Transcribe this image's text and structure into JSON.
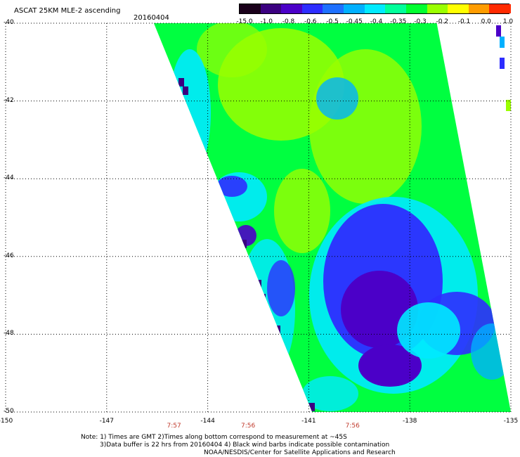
{
  "header": {
    "title": "ASCAT 25KM MLE-2 ascending",
    "date": "20160404"
  },
  "colorbar": {
    "labels": [
      "-15.0",
      "-1.0",
      "-0.8",
      "-0.6",
      "-0.5",
      "-0.45",
      "-0.4",
      "-0.35",
      "-0.3",
      "-0.2",
      "-0.1",
      "0.0",
      "1.0"
    ],
    "colors": [
      "#1a001a",
      "#3b0080",
      "#4b00c8",
      "#2d2dff",
      "#1e70ff",
      "#00b0ff",
      "#00eaff",
      "#00ff9a",
      "#00ff30",
      "#9aff00",
      "#ffff00",
      "#ff9c00",
      "#ff2a00"
    ]
  },
  "chart_data": {
    "type": "heatmap",
    "title": "ASCAT 25KM MLE-2 ascending",
    "x_ticks": [
      "-150",
      "-147",
      "-144",
      "-141",
      "-138",
      "-135"
    ],
    "y_ticks": [
      "-40",
      "-42",
      "-44",
      "-46",
      "-48",
      "-50"
    ],
    "xlim": [
      -150,
      -135
    ],
    "ylim": [
      -50,
      -40
    ],
    "grid": true,
    "times": [
      {
        "lon": -145,
        "label": "7:57"
      },
      {
        "lon": -142.8,
        "label": "7:56"
      },
      {
        "lon": -139.7,
        "label": "7:56"
      }
    ],
    "swath": {
      "top_lon": [
        -145.6,
        -137.2
      ],
      "bottom_lon": [
        -140.9,
        -135.0
      ]
    }
  },
  "notes": {
    "line1": "Note: 1) Times are GMT 2)Times along bottom correspond to measurement at ~45S",
    "line2": "3)Data buffer is 22 hrs from 20160404 4) Black wind barbs indicate possible contamination",
    "line3": "NOAA/NESDIS/Center for Satellite Applications and Research"
  }
}
